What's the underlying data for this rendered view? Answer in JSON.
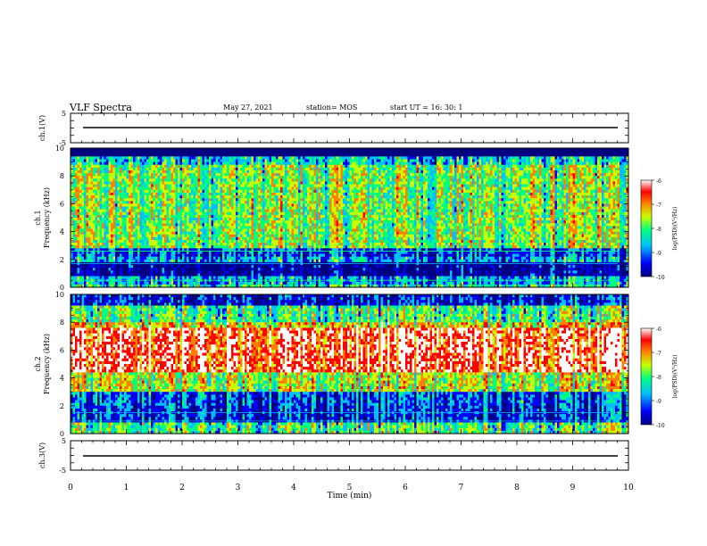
{
  "header": {
    "title": "VLF Spectra",
    "date": "May 27, 2021",
    "station": "station= MOS",
    "start": "start  UT  =   16: 30: 1"
  },
  "chart_data": [
    {
      "type": "line",
      "panel": "ch1-voltage",
      "ylabel": "ch.1(V)",
      "yticks": [
        "5",
        "-5"
      ],
      "ylim": [
        -5,
        5
      ],
      "value": 0,
      "xlim": [
        0,
        10
      ]
    },
    {
      "type": "heatmap",
      "panel": "ch1-spectrogram",
      "ylabel": "ch.1\nFrequency  (kHz)",
      "ylim": [
        0,
        10
      ],
      "yticks": [
        "0",
        "2",
        "4",
        "6",
        "8",
        "10"
      ],
      "xlim": [
        0,
        10
      ],
      "colorbar": {
        "label": "log(PSD)(V²/Hz)",
        "range": [
          -10,
          -6
        ],
        "ticks": [
          "-6",
          "-7",
          "-8",
          "-9",
          "-10"
        ]
      }
    },
    {
      "type": "heatmap",
      "panel": "ch2-spectrogram",
      "ylabel": "ch.2\nFrequency  (kHz)",
      "ylim": [
        0,
        10
      ],
      "yticks": [
        "0",
        "2",
        "4",
        "6",
        "8",
        "10"
      ],
      "xlim": [
        0,
        10
      ],
      "colorbar": {
        "label": "log(PSD)(V²/Hz)",
        "range": [
          -10,
          -6
        ],
        "ticks": [
          "-6",
          "-7",
          "-8",
          "-9",
          "-10"
        ]
      }
    },
    {
      "type": "line",
      "panel": "ch3-voltage",
      "ylabel": "ch.3(V)",
      "yticks": [
        "5",
        "-5"
      ],
      "ylim": [
        -5,
        5
      ],
      "value": 0,
      "xlim": [
        0,
        10
      ]
    }
  ],
  "xaxis": {
    "label": "Time  (min)",
    "ticks": [
      "0",
      "1",
      "2",
      "3",
      "4",
      "5",
      "6",
      "7",
      "8",
      "9",
      "10"
    ]
  },
  "colors": {
    "colormap": [
      "#000080",
      "#0000ff",
      "#00bfff",
      "#00ff80",
      "#c8ff00",
      "#ff8000",
      "#ff0000",
      "#ffffff"
    ]
  }
}
